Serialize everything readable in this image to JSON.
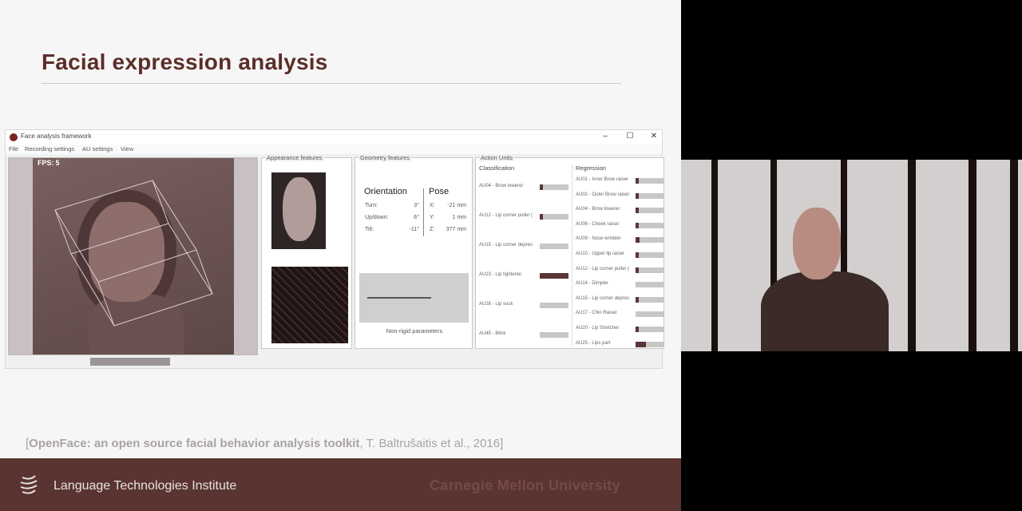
{
  "slide": {
    "title": "Facial expression analysis",
    "citation": {
      "open": "[",
      "bold": "OpenFace: an open source facial behavior analysis toolkit",
      "rest": ", T. Baltrušaitis et al., 2016]"
    },
    "footer_institute": "Language Technologies Institute",
    "footer_university": "Carnegie Mellon University"
  },
  "app": {
    "title": "Face analysis framework",
    "window_buttons": [
      "–",
      "☐",
      "✕"
    ],
    "menu": [
      "File",
      "Recording settings",
      "AU settings",
      "View"
    ],
    "video": {
      "fps_label": "FPS:",
      "fps_value": "5"
    },
    "appearance_label": "Appearance features",
    "geometry": {
      "label": "Geometry features",
      "orientation_title": "Orientation",
      "pose_title": "Pose",
      "orientation": [
        {
          "label": "Turn:",
          "value": "3°"
        },
        {
          "label": "Up/down:",
          "value": "6°"
        },
        {
          "label": "Tilt:",
          "value": "-11°"
        }
      ],
      "pose": [
        {
          "label": "X:",
          "value": "-21 mm"
        },
        {
          "label": "Y:",
          "value": "1 mm"
        },
        {
          "label": "Z:",
          "value": "377 mm"
        }
      ],
      "rigid_caption": "Non-rigid parameters"
    },
    "au": {
      "label": "Action Units",
      "class_head": "Classification",
      "reg_head": "Regression",
      "classification": [
        {
          "label": "AU04 - Brow lowerer",
          "level": 0.1
        },
        {
          "label": "AU12 - Lip corner puller (",
          "level": 0.1
        },
        {
          "label": "AU15 - Lip corner depres",
          "level": 0.0
        },
        {
          "label": "AU23 - Lip tightener",
          "level": 1.0
        },
        {
          "label": "AU28 - Lip suck",
          "level": 0.0
        },
        {
          "label": "AU45 - Blink",
          "level": 0.0
        }
      ],
      "regression": [
        {
          "label": "AU01 - Inner Brow raiser",
          "level": 0.1
        },
        {
          "label": "AU02 - Outer Brow raiser",
          "level": 0.1
        },
        {
          "label": "AU04 - Brow lowerer",
          "level": 0.1
        },
        {
          "label": "AU06 - Cheek raiser",
          "level": 0.1
        },
        {
          "label": "AU09 - Nose wrinkler",
          "level": 0.15
        },
        {
          "label": "AU10 - Upper lip raiser",
          "level": 0.1
        },
        {
          "label": "AU12 - Lip corner puller (",
          "level": 0.1
        },
        {
          "label": "AU14 - Dimpler",
          "level": 0.0
        },
        {
          "label": "AU15 - Lip corner depres",
          "level": 0.1
        },
        {
          "label": "AU17 - Chin Raiser",
          "level": 0.0
        },
        {
          "label": "AU20 - Lip Stretcher",
          "level": 0.1
        },
        {
          "label": "AU25 - Lips part",
          "level": 0.35
        }
      ]
    }
  }
}
